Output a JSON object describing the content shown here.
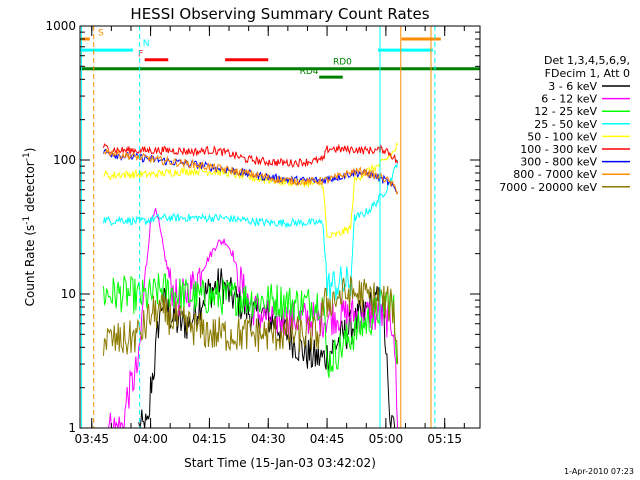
{
  "chart_data": {
    "type": "line",
    "title": "HESSI Observing Summary Count Rates",
    "xlabel": "Start Time (15-Jan-03 03:42:02)",
    "ylabel_main": "Count Rate (s",
    "ylabel_sup1": "-1",
    "ylabel_mid": " detector",
    "ylabel_sup2": "-1",
    "ylabel_end": ")",
    "yscale": "log",
    "ylim": [
      1,
      1000
    ],
    "xlim_min": [
      0,
      102
    ],
    "x_unit": "minutes after 03:42:02",
    "y_ticks": [
      {
        "v": 1,
        "label": "1"
      },
      {
        "v": 10,
        "label": "10"
      },
      {
        "v": 100,
        "label": "100"
      },
      {
        "v": 1000,
        "label": "1000"
      }
    ],
    "x_ticks": [
      {
        "t": 3.0,
        "label": "03:45"
      },
      {
        "t": 18.0,
        "label": "04:00"
      },
      {
        "t": 33.0,
        "label": "04:15"
      },
      {
        "t": 48.0,
        "label": "04:30"
      },
      {
        "t": 63.0,
        "label": "04:45"
      },
      {
        "t": 78.0,
        "label": "05:00"
      },
      {
        "t": 93.0,
        "label": "05:15"
      }
    ],
    "legend": {
      "placement": "outside-right",
      "header": [
        "Det 1,3,4,5,6,9,",
        "FDecim 1, Att 0"
      ]
    },
    "series": [
      {
        "name": "3 - 6 keV",
        "color": "#000000",
        "x": [
          15,
          17.5,
          18,
          19,
          20,
          21,
          22,
          23,
          25,
          27,
          28,
          29,
          30,
          31,
          32,
          34,
          36,
          38,
          40,
          44,
          47,
          50,
          53,
          56,
          59,
          62,
          63,
          66,
          70,
          74,
          77,
          78,
          79,
          81
        ],
        "y": [
          1,
          1,
          2,
          3,
          6,
          9,
          8,
          7,
          6,
          6,
          6,
          7,
          8,
          9,
          10,
          11,
          12,
          10,
          9,
          7,
          7,
          6,
          5,
          4,
          3.4,
          3.3,
          3.5,
          4.5,
          6,
          8,
          9,
          4,
          1,
          1
        ]
      },
      {
        "name": "6 - 12 keV",
        "color": "#ff00ff",
        "x": [
          6,
          11,
          12,
          15,
          16,
          17,
          18,
          19,
          20,
          21,
          22,
          23,
          24,
          25,
          27,
          29,
          31,
          33,
          35,
          37,
          39,
          40,
          42,
          44,
          46,
          50,
          54,
          58,
          62,
          66,
          70,
          74,
          78,
          80,
          81
        ],
        "y": [
          1,
          1,
          1.7,
          3,
          8,
          17,
          35,
          43,
          35,
          24,
          17,
          12,
          10,
          9,
          10,
          12,
          15,
          19,
          24,
          25,
          20,
          15,
          10,
          8,
          7,
          6.5,
          6.5,
          6.5,
          6.5,
          7,
          7,
          7,
          6.5,
          6,
          1
        ]
      },
      {
        "name": "12 - 25 keV",
        "color": "#00ff00",
        "x": [
          6,
          9,
          12,
          15,
          16,
          17,
          19,
          21,
          25,
          30,
          35,
          40,
          45,
          50,
          55,
          60,
          61,
          62,
          63,
          65,
          68,
          71,
          74,
          77,
          78,
          79,
          80,
          81
        ],
        "y": [
          10,
          10,
          10,
          9.5,
          9.5,
          9.5,
          10,
          11,
          10,
          9.5,
          9.5,
          9.5,
          9,
          9,
          8.5,
          8.5,
          9,
          9,
          3,
          3.5,
          4.5,
          5.5,
          6.5,
          8,
          9,
          9,
          7.5,
          3
        ]
      },
      {
        "name": "25 - 50 keV",
        "color": "#00ffff",
        "x": [
          6,
          8,
          10,
          14,
          16,
          17,
          18,
          20,
          24,
          28,
          32,
          36,
          40,
          44,
          48,
          52,
          56,
          60,
          62,
          63,
          64,
          66,
          68,
          69,
          70,
          72,
          74,
          76,
          78,
          80,
          81
        ],
        "y": [
          36,
          35,
          36,
          35,
          35,
          35,
          36,
          37,
          37,
          37,
          37,
          37,
          36,
          35,
          34,
          34,
          34,
          34,
          34,
          11,
          11.5,
          12,
          12,
          12,
          37,
          39,
          43,
          50,
          60,
          80,
          100
        ]
      },
      {
        "name": "50 - 100 keV",
        "color": "#ffff00",
        "x": [
          6,
          8,
          10,
          14,
          18,
          22,
          26,
          30,
          34,
          38,
          42,
          46,
          50,
          54,
          58,
          62,
          63,
          64,
          66,
          68,
          69,
          70,
          72,
          74,
          76,
          78,
          80,
          81
        ],
        "y": [
          78,
          76,
          78,
          78,
          78,
          80,
          82,
          83,
          82,
          80,
          75,
          72,
          70,
          68,
          67,
          66,
          26,
          27,
          28,
          30,
          31,
          70,
          78,
          85,
          90,
          100,
          115,
          130
        ]
      },
      {
        "name": "100 - 300 keV",
        "color": "#ff0000",
        "x": [
          6,
          8,
          10,
          14,
          18,
          22,
          26,
          30,
          32,
          34,
          38,
          42,
          46,
          50,
          54,
          58,
          62,
          63,
          64,
          66,
          68,
          70,
          72,
          74,
          76,
          78,
          80,
          81
        ],
        "y": [
          125,
          120,
          118,
          118,
          118,
          118,
          117,
          115,
          118,
          118,
          112,
          102,
          98,
          96,
          95,
          97,
          100,
          120,
          122,
          120,
          120,
          120,
          118,
          118,
          118,
          120,
          105,
          95
        ]
      },
      {
        "name": "300 - 800 keV",
        "color": "#0000ff",
        "x": [
          6,
          8,
          10,
          14,
          18,
          22,
          26,
          30,
          34,
          38,
          42,
          46,
          50,
          54,
          58,
          62,
          64,
          66,
          68,
          70,
          72,
          74,
          76,
          78,
          80,
          81
        ],
        "y": [
          115,
          112,
          108,
          105,
          102,
          98,
          95,
          92,
          88,
          84,
          80,
          76,
          73,
          71,
          70,
          71,
          73,
          75,
          78,
          80,
          80,
          78,
          74,
          70,
          62,
          56
        ]
      },
      {
        "name": "800 - 7000 keV",
        "color": "#ff8c00",
        "x": [
          6,
          8,
          10,
          14,
          18,
          22,
          26,
          30,
          34,
          38,
          42,
          46,
          50,
          54,
          58,
          62,
          64,
          66,
          68,
          70,
          72,
          74,
          76,
          78,
          80,
          81
        ],
        "y": [
          118,
          114,
          110,
          106,
          102,
          98,
          95,
          92,
          88,
          84,
          80,
          76,
          72,
          70,
          69,
          70,
          72,
          75,
          79,
          82,
          82,
          79,
          75,
          72,
          64,
          58
        ]
      },
      {
        "name": "7000 - 20000 keV",
        "color": "#8b7a00",
        "x": [
          6,
          9,
          12,
          15,
          17,
          18,
          20,
          22,
          26,
          30,
          34,
          38,
          42,
          46,
          50,
          54,
          58,
          61,
          62,
          63,
          64,
          66,
          68,
          71,
          74,
          77,
          78,
          80,
          81
        ],
        "y": [
          4.5,
          4.5,
          4.5,
          5,
          6,
          7,
          7.5,
          7,
          6,
          5.5,
          5,
          5,
          5,
          5,
          5,
          5,
          5,
          5,
          8,
          8.5,
          9,
          9.5,
          10,
          10,
          9.5,
          9,
          8.5,
          8,
          3
        ]
      }
    ],
    "flag_labels": {
      "s": "S",
      "n": "N",
      "f": "F",
      "rd0": "RD0",
      "rd4": "RD4"
    },
    "flags": [
      {
        "name": "S",
        "color": "#ff8c00",
        "y_level": 800,
        "segments": [
          [
            0,
            2.5
          ],
          [
            82,
            92
          ]
        ]
      },
      {
        "name": "N",
        "color": "#00ffff",
        "y_level": 660,
        "segments": [
          [
            0,
            13.5
          ],
          [
            76,
            90
          ]
        ]
      },
      {
        "name": "F",
        "color": "#ff0000",
        "y_level": 560,
        "segments": [
          [
            16.5,
            22.5
          ],
          [
            37,
            48
          ]
        ]
      },
      {
        "name": "RD0",
        "color": "#008000",
        "y_level": 480,
        "segments": [
          [
            0,
            102
          ]
        ]
      },
      {
        "name": "RD4",
        "color": "#008000",
        "y_level": 415,
        "segments": [
          [
            61,
            67
          ]
        ]
      }
    ],
    "vertical_lines": [
      {
        "x": 0.4,
        "color": "#00ffff",
        "style": "solid"
      },
      {
        "x": 3.5,
        "color": "#ff8c00",
        "style": "dashed"
      },
      {
        "x": 15.2,
        "color": "#00ffff",
        "style": "dashed"
      },
      {
        "x": 76.5,
        "color": "#00ffff",
        "style": "solid"
      },
      {
        "x": 81.8,
        "color": "#ff8c00",
        "style": "solid"
      },
      {
        "x": 89.5,
        "color": "#ff8c00",
        "style": "solid"
      },
      {
        "x": 90.5,
        "color": "#00ffff",
        "style": "dashed"
      }
    ]
  },
  "footer": {
    "timestamp": "1-Apr-2010 07:23"
  }
}
